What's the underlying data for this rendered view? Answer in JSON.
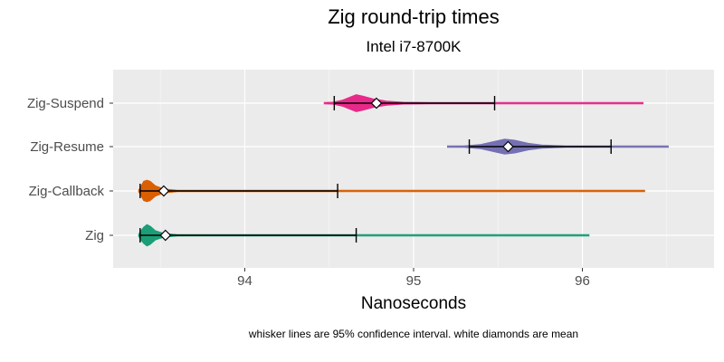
{
  "chart_data": {
    "type": "violin",
    "title": "Zig  round-trip times",
    "subtitle": "Intel i7-8700K",
    "xlabel": "Nanoseconds",
    "ylabel": "",
    "caption": "whisker lines are 95% confidence interval. white diamonds are mean",
    "xlim": [
      93.22,
      96.78
    ],
    "x_ticks": [
      94,
      95,
      96
    ],
    "x_tick_labels": [
      "94",
      "95",
      "96"
    ],
    "grid": true,
    "categories": [
      "Zig-Suspend",
      "Zig-Resume",
      "Zig-Callback",
      "Zig"
    ],
    "series": [
      {
        "name": "Zig-Suspend",
        "color": "#e7298a",
        "min": 94.47,
        "max": 96.36,
        "mean": 94.78,
        "ci": [
          94.53,
          95.48
        ],
        "density": [
          [
            94.47,
            0.0
          ],
          [
            94.52,
            0.1
          ],
          [
            94.58,
            0.3
          ],
          [
            94.63,
            0.62
          ],
          [
            94.66,
            0.8
          ],
          [
            94.7,
            0.66
          ],
          [
            94.76,
            0.42
          ],
          [
            94.84,
            0.2
          ],
          [
            94.94,
            0.1
          ],
          [
            95.1,
            0.06
          ],
          [
            95.4,
            0.04
          ],
          [
            95.8,
            0.03
          ],
          [
            96.1,
            0.03
          ],
          [
            96.36,
            0.0
          ]
        ]
      },
      {
        "name": "Zig-Resume",
        "color": "#7570b3",
        "min": 95.2,
        "max": 96.51,
        "mean": 95.56,
        "ci": [
          95.33,
          96.17
        ],
        "density": [
          [
            95.2,
            0.0
          ],
          [
            95.3,
            0.08
          ],
          [
            95.4,
            0.22
          ],
          [
            95.48,
            0.5
          ],
          [
            95.54,
            0.7
          ],
          [
            95.6,
            0.6
          ],
          [
            95.68,
            0.32
          ],
          [
            95.76,
            0.16
          ],
          [
            95.9,
            0.08
          ],
          [
            96.1,
            0.05
          ],
          [
            96.3,
            0.04
          ],
          [
            96.51,
            0.0
          ]
        ]
      },
      {
        "name": "Zig-Callback",
        "color": "#d95f02",
        "min": 93.37,
        "max": 96.37,
        "mean": 93.52,
        "ci": [
          93.38,
          94.55
        ],
        "density": [
          [
            93.37,
            0.0
          ],
          [
            93.38,
            0.3
          ],
          [
            93.4,
            0.9
          ],
          [
            93.42,
            1.0
          ],
          [
            93.44,
            0.9
          ],
          [
            93.47,
            0.5
          ],
          [
            93.52,
            0.2
          ],
          [
            93.6,
            0.08
          ],
          [
            93.8,
            0.06
          ],
          [
            94.2,
            0.05
          ],
          [
            95.0,
            0.04
          ],
          [
            95.8,
            0.04
          ],
          [
            96.37,
            0.0
          ]
        ]
      },
      {
        "name": "Zig",
        "color": "#1b9e77",
        "min": 93.37,
        "max": 96.04,
        "mean": 93.53,
        "ci": [
          93.38,
          94.66
        ],
        "density": [
          [
            93.37,
            0.0
          ],
          [
            93.38,
            0.35
          ],
          [
            93.4,
            0.75
          ],
          [
            93.42,
            1.0
          ],
          [
            93.44,
            0.85
          ],
          [
            93.47,
            0.45
          ],
          [
            93.52,
            0.18
          ],
          [
            93.6,
            0.08
          ],
          [
            94.0,
            0.05
          ],
          [
            94.6,
            0.05
          ],
          [
            95.2,
            0.04
          ],
          [
            95.7,
            0.05
          ],
          [
            96.04,
            0.0
          ]
        ]
      }
    ]
  }
}
